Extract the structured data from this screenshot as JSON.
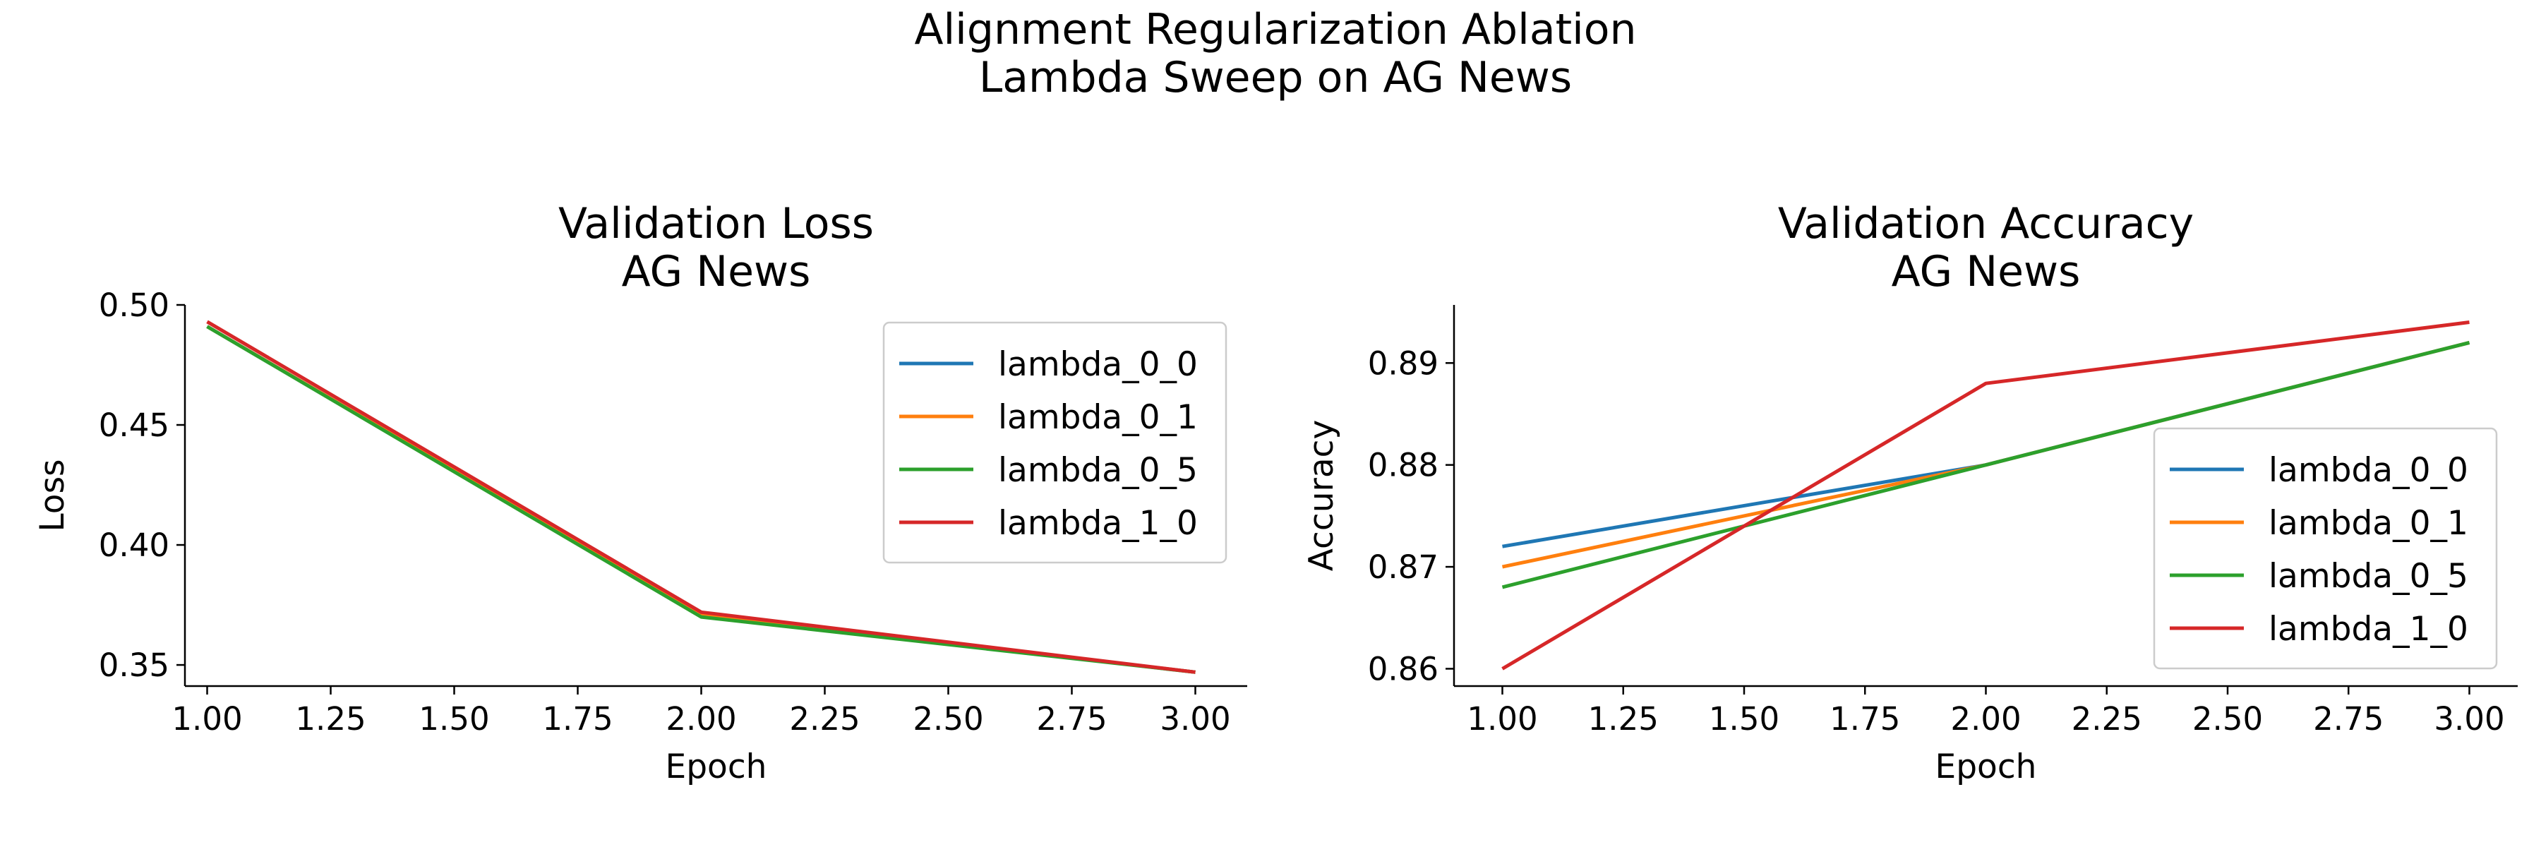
{
  "figure": {
    "suptitle_line1": "Alignment Regularization Ablation",
    "suptitle_line2": "Lambda Sweep on AG News"
  },
  "chart_data": [
    {
      "type": "line",
      "title_line1": "Validation Loss",
      "title_line2": "AG News",
      "xlabel": "Epoch",
      "ylabel": "Loss",
      "x": [
        1.0,
        2.0,
        3.0
      ],
      "xlim": [
        0.955,
        3.105
      ],
      "ylim": [
        0.3412,
        0.5
      ],
      "xticks": [
        1.0,
        1.25,
        1.5,
        1.75,
        2.0,
        2.25,
        2.5,
        2.75,
        3.0
      ],
      "xtick_labels": [
        "1.00",
        "1.25",
        "1.50",
        "1.75",
        "2.00",
        "2.25",
        "2.50",
        "2.75",
        "3.00"
      ],
      "yticks": [
        0.35,
        0.4,
        0.45,
        0.5
      ],
      "ytick_labels": [
        "0.35",
        "0.40",
        "0.45",
        "0.50"
      ],
      "grid": false,
      "legend_position": "upper right",
      "series": [
        {
          "name": "lambda_0_0",
          "color": "#1f77b4",
          "values": [
            0.491,
            0.371,
            0.347
          ]
        },
        {
          "name": "lambda_0_1",
          "color": "#ff7f0e",
          "values": [
            0.491,
            0.371,
            0.347
          ]
        },
        {
          "name": "lambda_0_5",
          "color": "#2ca02c",
          "values": [
            0.491,
            0.37,
            0.347
          ]
        },
        {
          "name": "lambda_1_0",
          "color": "#d62728",
          "values": [
            0.493,
            0.372,
            0.347
          ]
        }
      ]
    },
    {
      "type": "line",
      "title_line1": "Validation Accuracy",
      "title_line2": "AG News",
      "xlabel": "Epoch",
      "ylabel": "Accuracy",
      "x": [
        1.0,
        2.0,
        3.0
      ],
      "xlim": [
        0.9,
        3.1
      ],
      "ylim": [
        0.8583,
        0.8957
      ],
      "xticks": [
        1.0,
        1.25,
        1.5,
        1.75,
        2.0,
        2.25,
        2.5,
        2.75,
        3.0
      ],
      "xtick_labels": [
        "1.00",
        "1.25",
        "1.50",
        "1.75",
        "2.00",
        "2.25",
        "2.50",
        "2.75",
        "3.00"
      ],
      "yticks": [
        0.86,
        0.87,
        0.88,
        0.89
      ],
      "ytick_labels": [
        "0.86",
        "0.87",
        "0.88",
        "0.89"
      ],
      "grid": false,
      "legend_position": "lower right",
      "series": [
        {
          "name": "lambda_0_0",
          "color": "#1f77b4",
          "values": [
            0.872,
            0.88,
            0.892
          ]
        },
        {
          "name": "lambda_0_1",
          "color": "#ff7f0e",
          "values": [
            0.87,
            0.88,
            0.892
          ]
        },
        {
          "name": "lambda_0_5",
          "color": "#2ca02c",
          "values": [
            0.868,
            0.88,
            0.892
          ]
        },
        {
          "name": "lambda_1_0",
          "color": "#d62728",
          "values": [
            0.86,
            0.888,
            0.894
          ]
        }
      ]
    }
  ]
}
